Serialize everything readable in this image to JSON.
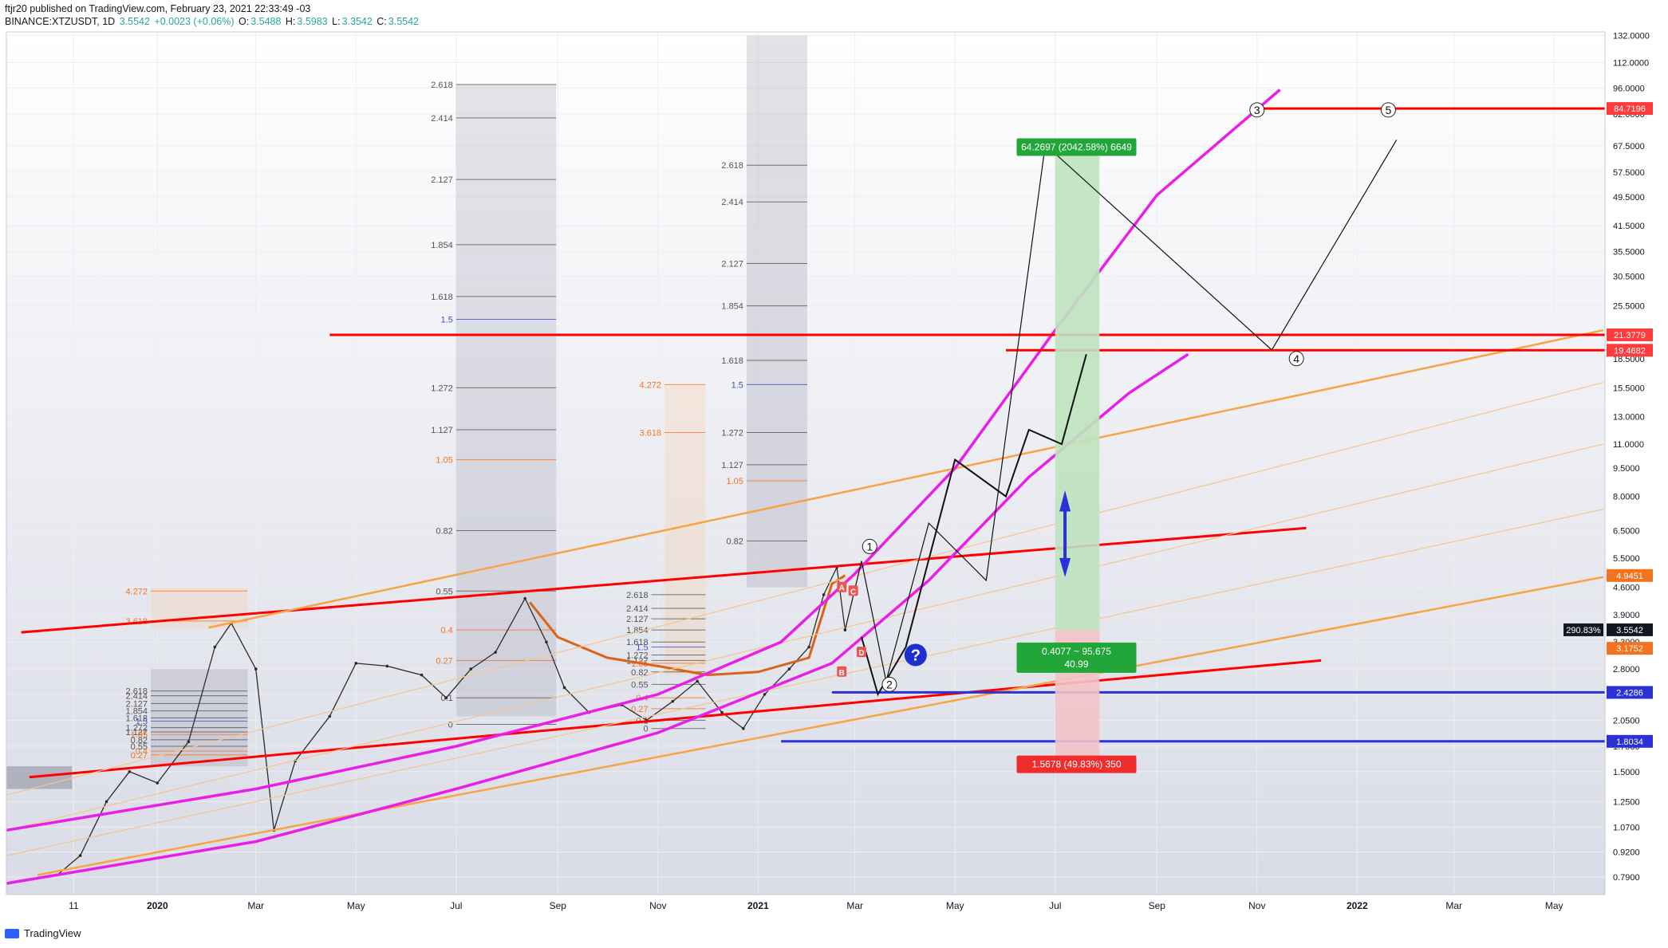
{
  "header": {
    "publish_line": "ftjr20 published on TradingView.com, February 23, 2021 22:33:49 -03",
    "symbol": "BINANCE:XTZUSDT, 1D",
    "last": "3.5542",
    "change": "+0.0023 (+0.06%)",
    "o_label": "O:",
    "o": "3.5488",
    "h_label": "H:",
    "h": "3.5983",
    "l_label": "L:",
    "l": "3.3542",
    "c_label": "C:",
    "c": "3.5542"
  },
  "footer": {
    "brand": "TradingView"
  },
  "colors": {
    "red": "#ff0000",
    "orange": "#f7a443",
    "magenta": "#e91ee9",
    "blue": "#2a31d6",
    "green_zone": "#bfe3bf",
    "red_zone": "#f2c3c7"
  },
  "chart_data": {
    "type": "line",
    "y_scale": "log",
    "ylim": [
      0.71,
      135
    ],
    "y_ticks": [
      "132.0000",
      "112.0000",
      "96.0000",
      "82.0000",
      "67.5000",
      "57.5000",
      "49.5000",
      "41.5000",
      "35.5000",
      "30.5000",
      "25.5000",
      "21.5000",
      "18.5000",
      "15.5000",
      "13.0000",
      "11.0000",
      "9.5000",
      "8.0000",
      "6.5000",
      "5.5000",
      "4.6000",
      "3.9000",
      "3.3000",
      "2.8000",
      "2.4000",
      "2.0500",
      "1.7500",
      "1.5000",
      "1.2500",
      "1.0700",
      "0.9200",
      "0.7900"
    ],
    "x_ticks": [
      "11",
      "2020",
      "Mar",
      "May",
      "Jul",
      "Sep",
      "Nov",
      "2021",
      "Mar",
      "May",
      "Jul",
      "Sep",
      "Nov",
      "2022",
      "Mar",
      "May"
    ],
    "price_labels": [
      {
        "value": 84.7196,
        "text": "84.7196",
        "color": "#ff3b3b"
      },
      {
        "value": 21.3779,
        "text": "21.3779",
        "color": "#ff3b3b"
      },
      {
        "value": 19.4682,
        "text": "19.4682",
        "color": "#ff3b3b"
      },
      {
        "value": 4.9451,
        "text": "4.9451",
        "color": "#f5731e"
      },
      {
        "value": 3.5542,
        "text": "3.5542",
        "color": "#131722"
      },
      {
        "value": 3.1752,
        "text": "3.1752",
        "color": "#f5731e"
      },
      {
        "value": 2.4286,
        "text": "2.4286",
        "color": "#2a31d6"
      },
      {
        "value": 1.8034,
        "text": "1.8034",
        "color": "#2a31d6"
      }
    ],
    "percent_label": "290.83%",
    "target_label": "64.2697 (2042.58%) 6649",
    "stop_label": "1.5678 (49.83%) 350",
    "rr_line1": "0.4077 ~ 95.675",
    "rr_line2": "40.99",
    "wave_labels": [
      "1",
      "2",
      "3",
      "4",
      "5"
    ],
    "question_mark": "?",
    "pattern_letters": [
      "A",
      "B",
      "C",
      "D"
    ],
    "fib_sets": [
      {
        "levels": [
          "2.618",
          "2.414",
          "2.127",
          "1.854",
          "1.618",
          "1.5",
          "1.272",
          "1.127",
          "1.05",
          "0.82",
          "0.55",
          "0.4",
          "0.27"
        ]
      },
      {
        "levels": [
          "4.272",
          "3.618"
        ]
      },
      {
        "levels": [
          "2.618",
          "2.414",
          "2.127",
          "1.854",
          "1.618",
          "1.5",
          "1.272",
          "1.127",
          "1.05",
          "0.82",
          "0.55",
          "0.4",
          "0.27",
          "0.1",
          "0"
        ]
      },
      {
        "levels": [
          "2.618",
          "2.414",
          "2.127",
          "1.854",
          "1.618",
          "1.5",
          "1.272",
          "1.127",
          "1.05",
          "0.82",
          "0.55",
          "0.4",
          "0.27",
          "0.1",
          "0"
        ]
      },
      {
        "levels": [
          "4.272",
          "3.618"
        ]
      },
      {
        "levels": [
          "2.618",
          "2.414",
          "2.127",
          "1.854",
          "1.618",
          "1.5",
          "1.272",
          "1.127",
          "1.05",
          "0.82"
        ]
      }
    ],
    "series": [
      {
        "name": "XTZUSDT",
        "x": [
          "2019-11-01",
          "2019-11-15",
          "2019-12-01",
          "2019-12-15",
          "2020-01-01",
          "2020-01-20",
          "2020-02-05",
          "2020-02-15",
          "2020-03-01",
          "2020-03-12",
          "2020-03-25",
          "2020-04-15",
          "2020-05-01",
          "2020-05-20",
          "2020-06-10",
          "2020-06-25",
          "2020-07-10",
          "2020-07-25",
          "2020-08-12",
          "2020-08-25",
          "2020-09-05",
          "2020-09-20",
          "2020-10-10",
          "2020-10-25",
          "2020-11-10",
          "2020-11-25",
          "2020-12-10",
          "2020-12-23",
          "2021-01-05",
          "2021-01-20",
          "2021-02-01",
          "2021-02-10",
          "2021-02-18",
          "2021-02-23"
        ],
        "values": [
          0.8,
          0.9,
          1.25,
          1.5,
          1.4,
          1.8,
          3.2,
          3.7,
          2.8,
          1.05,
          1.6,
          2.1,
          2.9,
          2.85,
          2.7,
          2.35,
          2.8,
          3.1,
          4.3,
          3.3,
          2.5,
          2.15,
          2.25,
          2.05,
          2.3,
          2.6,
          2.15,
          1.95,
          2.4,
          2.8,
          3.2,
          4.4,
          5.2,
          3.55
        ]
      }
    ]
  }
}
